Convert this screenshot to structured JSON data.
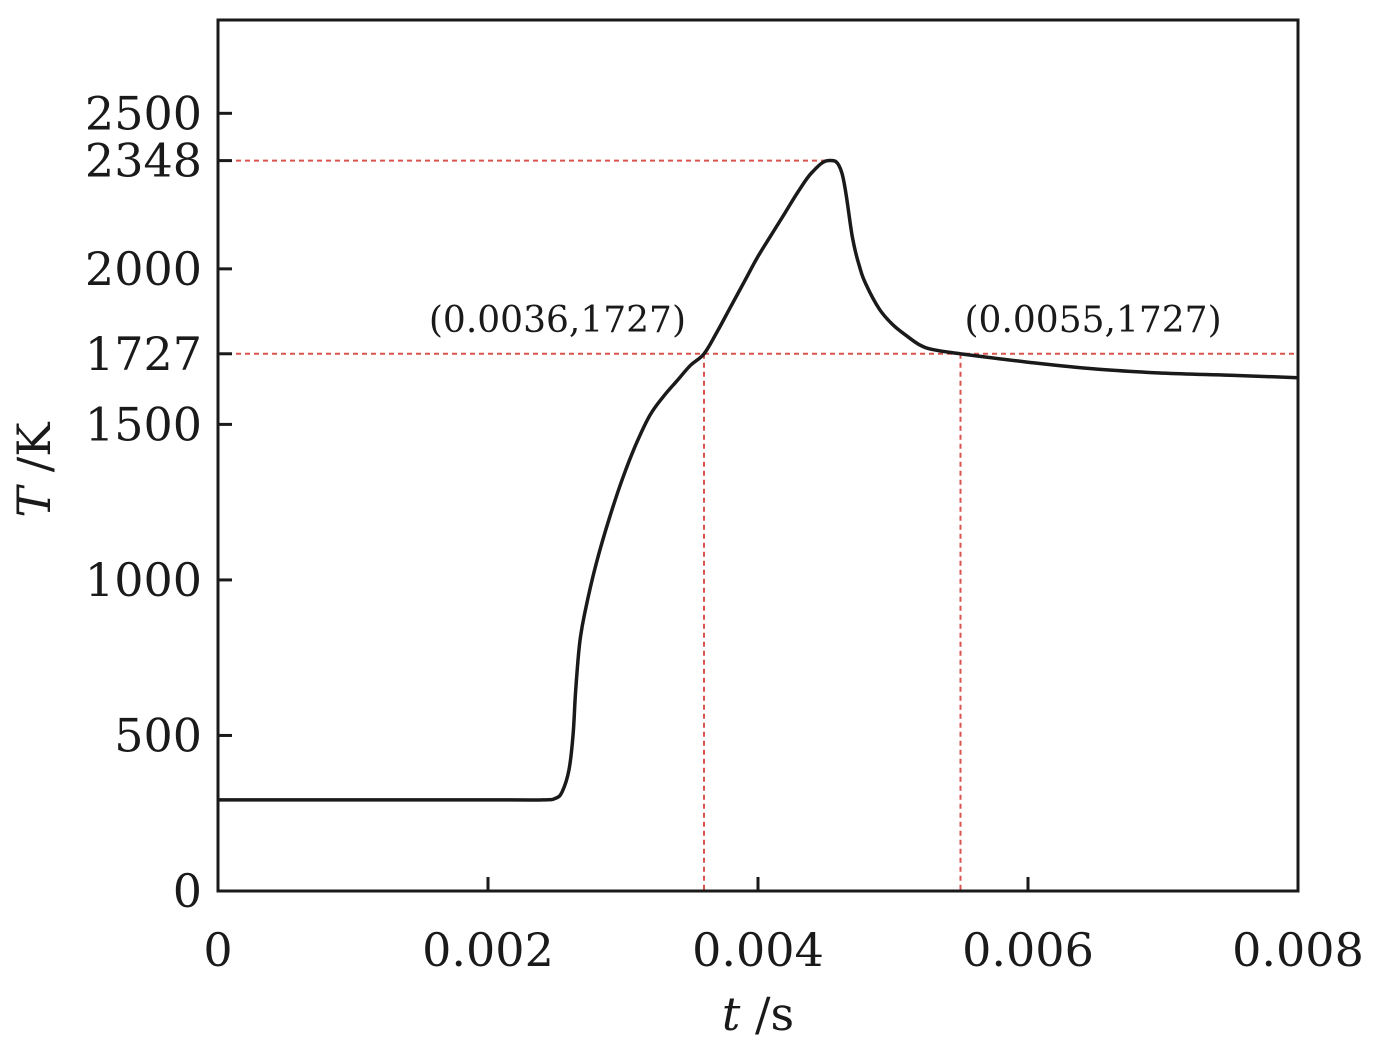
{
  "chart_data": {
    "type": "line",
    "xlabel": {
      "var": "t",
      "unit": " /s"
    },
    "ylabel": {
      "var": "T",
      "unit": " /K"
    },
    "xlim": [
      0,
      0.008
    ],
    "ylim": [
      0,
      2500
    ],
    "x_ticks": [
      {
        "value": 0,
        "label": "0"
      },
      {
        "value": 0.002,
        "label": "0.002"
      },
      {
        "value": 0.004,
        "label": "0.004"
      },
      {
        "value": 0.006,
        "label": "0.006"
      },
      {
        "value": 0.008,
        "label": "0.008"
      }
    ],
    "y_ticks": [
      {
        "value": 0,
        "label": "0"
      },
      {
        "value": 500,
        "label": "500"
      },
      {
        "value": 1000,
        "label": "1000"
      },
      {
        "value": 1500,
        "label": "1500"
      },
      {
        "value": 1727,
        "label": "1727"
      },
      {
        "value": 2000,
        "label": "2000"
      },
      {
        "value": 2348,
        "label": "2348"
      },
      {
        "value": 2500,
        "label": "2500"
      }
    ],
    "grid": false,
    "series": [
      {
        "color": "#1a1a1a",
        "points": [
          [
            0,
            293
          ],
          [
            0.002,
            293
          ],
          [
            0.0024,
            293
          ],
          [
            0.0025,
            298
          ],
          [
            0.00255,
            320
          ],
          [
            0.0026,
            390
          ],
          [
            0.00263,
            500
          ],
          [
            0.00265,
            650
          ],
          [
            0.00268,
            800
          ],
          [
            0.00272,
            900
          ],
          [
            0.0028,
            1050
          ],
          [
            0.0029,
            1200
          ],
          [
            0.003,
            1330
          ],
          [
            0.0031,
            1440
          ],
          [
            0.0032,
            1530
          ],
          [
            0.0033,
            1590
          ],
          [
            0.0034,
            1640
          ],
          [
            0.0035,
            1690
          ],
          [
            0.0036,
            1727
          ],
          [
            0.0037,
            1800
          ],
          [
            0.0038,
            1880
          ],
          [
            0.0039,
            1960
          ],
          [
            0.004,
            2040
          ],
          [
            0.0041,
            2110
          ],
          [
            0.0042,
            2180
          ],
          [
            0.0043,
            2250
          ],
          [
            0.0044,
            2310
          ],
          [
            0.00452,
            2348
          ],
          [
            0.00462,
            2310
          ],
          [
            0.0047,
            2100
          ],
          [
            0.00475,
            2010
          ],
          [
            0.0048,
            1950
          ],
          [
            0.0049,
            1870
          ],
          [
            0.005,
            1820
          ],
          [
            0.0051,
            1785
          ],
          [
            0.0052,
            1755
          ],
          [
            0.0053,
            1740
          ],
          [
            0.0055,
            1727
          ],
          [
            0.006,
            1700
          ],
          [
            0.0065,
            1678
          ],
          [
            0.007,
            1665
          ],
          [
            0.0075,
            1658
          ],
          [
            0.008,
            1650
          ]
        ]
      }
    ],
    "reference_lines": {
      "color": "#d9534f",
      "peak": {
        "x": 0.00452,
        "y": 2348
      },
      "level": {
        "y": 1727
      },
      "markers": [
        {
          "x": 0.0036,
          "y": 1727,
          "label": "(0.0036,1727)",
          "anchor": "end"
        },
        {
          "x": 0.0055,
          "y": 1727,
          "label": "(0.0055,1727)",
          "anchor": "start"
        }
      ]
    }
  }
}
